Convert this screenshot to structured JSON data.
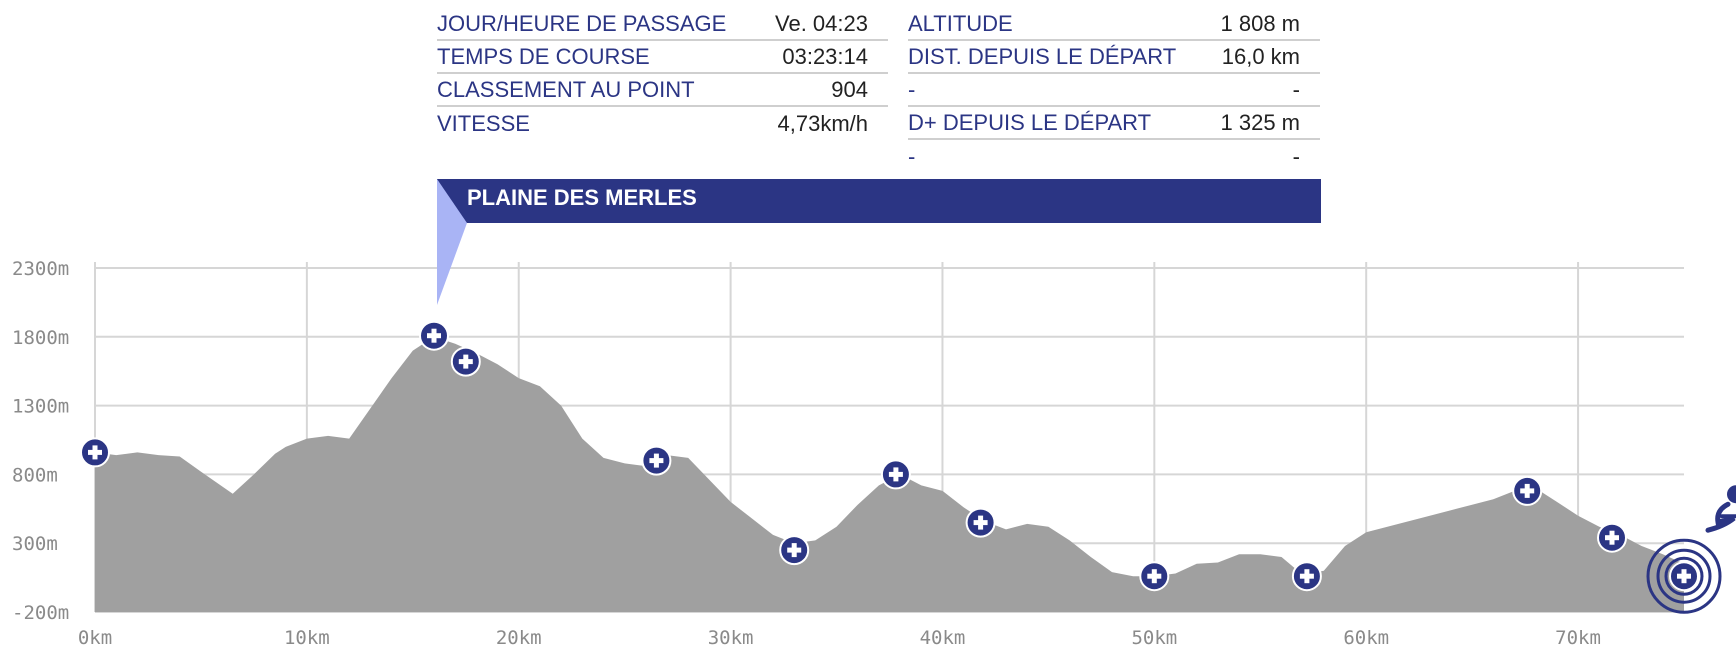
{
  "info": {
    "left": [
      {
        "label": "JOUR/HEURE DE PASSAGE",
        "value": "Ve. 04:23"
      },
      {
        "label": "TEMPS DE COURSE",
        "value": "03:23:14"
      },
      {
        "label": "CLASSEMENT AU POINT",
        "value": "904"
      },
      {
        "label": "VITESSE",
        "value": "4,73km/h"
      }
    ],
    "right": [
      {
        "label": "ALTITUDE",
        "value": "1 808 m"
      },
      {
        "label": "DIST. DEPUIS LE DÉPART",
        "value": "16,0 km"
      },
      {
        "label": "-",
        "value": "-"
      },
      {
        "label": "D+ DEPUIS LE DÉPART",
        "value": "1 325 m"
      },
      {
        "label": "-",
        "value": "-"
      }
    ]
  },
  "point_name": "PLAINE DES MERLES",
  "colors": {
    "accent": "#2b3584",
    "area": "#a0a0a0",
    "grid": "#d6d6d6",
    "flag": "#a9b4f5"
  },
  "chart_data": {
    "type": "area",
    "x_unit": "km",
    "y_unit": "m",
    "xlim": [
      0,
      75
    ],
    "ylim": [
      -200,
      2300
    ],
    "xticks": [
      0,
      10,
      20,
      30,
      40,
      50,
      60,
      70
    ],
    "xtick_labels": [
      "0km",
      "10km",
      "20km",
      "30km",
      "40km",
      "50km",
      "60km",
      "70km"
    ],
    "yticks": [
      -200,
      300,
      800,
      1300,
      1800,
      2300
    ],
    "ytick_labels": [
      "-200m",
      "300m",
      "800m",
      "1300m",
      "1800m",
      "2300m"
    ],
    "grid": true,
    "profile": [
      [
        0,
        960
      ],
      [
        1,
        940
      ],
      [
        2,
        960
      ],
      [
        3,
        940
      ],
      [
        4,
        930
      ],
      [
        5,
        820
      ],
      [
        6.5,
        660
      ],
      [
        7.5,
        800
      ],
      [
        8.5,
        950
      ],
      [
        9,
        1000
      ],
      [
        10,
        1060
      ],
      [
        11,
        1080
      ],
      [
        12,
        1060
      ],
      [
        13,
        1280
      ],
      [
        14,
        1500
      ],
      [
        15,
        1700
      ],
      [
        16,
        1800
      ],
      [
        17,
        1750
      ],
      [
        18,
        1680
      ],
      [
        19,
        1600
      ],
      [
        20,
        1500
      ],
      [
        21,
        1440
      ],
      [
        22,
        1300
      ],
      [
        23,
        1060
      ],
      [
        24,
        920
      ],
      [
        25,
        880
      ],
      [
        26,
        860
      ],
      [
        27,
        940
      ],
      [
        28,
        920
      ],
      [
        29,
        760
      ],
      [
        30,
        600
      ],
      [
        31,
        480
      ],
      [
        32,
        360
      ],
      [
        33,
        300
      ],
      [
        34,
        320
      ],
      [
        35,
        420
      ],
      [
        36,
        580
      ],
      [
        37,
        720
      ],
      [
        38,
        800
      ],
      [
        39,
        720
      ],
      [
        40,
        680
      ],
      [
        41,
        560
      ],
      [
        42,
        460
      ],
      [
        43,
        400
      ],
      [
        44,
        440
      ],
      [
        45,
        420
      ],
      [
        46,
        320
      ],
      [
        47,
        200
      ],
      [
        48,
        90
      ],
      [
        49,
        60
      ],
      [
        50,
        60
      ],
      [
        51,
        80
      ],
      [
        52,
        150
      ],
      [
        53,
        160
      ],
      [
        54,
        220
      ],
      [
        55,
        220
      ],
      [
        56,
        200
      ],
      [
        57,
        70
      ],
      [
        58,
        100
      ],
      [
        59,
        280
      ],
      [
        60,
        380
      ],
      [
        61,
        420
      ],
      [
        62,
        460
      ],
      [
        63,
        500
      ],
      [
        64,
        540
      ],
      [
        65,
        580
      ],
      [
        66,
        620
      ],
      [
        67,
        680
      ],
      [
        68,
        700
      ],
      [
        69,
        600
      ],
      [
        70,
        500
      ],
      [
        71,
        420
      ],
      [
        72,
        360
      ],
      [
        73,
        280
      ],
      [
        74,
        220
      ],
      [
        75,
        150
      ]
    ],
    "checkpoints": [
      {
        "x": 0,
        "y": 960
      },
      {
        "x": 16.0,
        "y": 1808
      },
      {
        "x": 17.5,
        "y": 1620
      },
      {
        "x": 26.5,
        "y": 900
      },
      {
        "x": 33,
        "y": 250
      },
      {
        "x": 37.8,
        "y": 800
      },
      {
        "x": 41.8,
        "y": 450
      },
      {
        "x": 50,
        "y": 60
      },
      {
        "x": 57.2,
        "y": 60
      },
      {
        "x": 67.6,
        "y": 680
      },
      {
        "x": 71.6,
        "y": 340
      },
      {
        "x": 75,
        "y": 60
      }
    ],
    "selected_checkpoint": 1
  }
}
